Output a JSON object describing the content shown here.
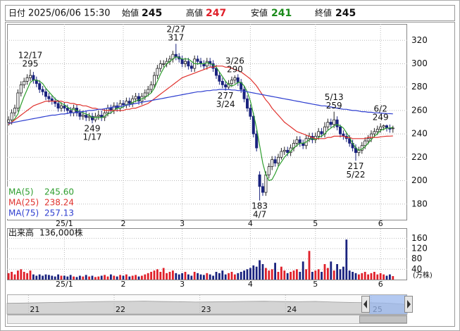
{
  "chart_data": {
    "type": "candlestick",
    "header": {
      "date_label": "日付",
      "date": "2025/06/06 15:30",
      "open_label": "始値",
      "high_label": "高値",
      "low_label": "安値",
      "close_label": "終値"
    },
    "categories": [
      null,
      null,
      null,
      null,
      null,
      null,
      null,
      null,
      null,
      null,
      null,
      null,
      null,
      null,
      null,
      null,
      null,
      null,
      "25/1",
      null,
      null,
      null,
      null,
      null,
      null,
      null,
      null,
      null,
      null,
      null,
      null,
      null,
      null,
      null,
      null,
      null,
      null,
      "2",
      null,
      null,
      null,
      null,
      null,
      null,
      null,
      null,
      null,
      null,
      null,
      null,
      null,
      null,
      null,
      null,
      null,
      null,
      "3",
      null,
      null,
      null,
      null,
      null,
      null,
      null,
      null,
      null,
      null,
      null,
      null,
      null,
      null,
      null,
      null,
      null,
      null,
      null,
      null,
      null,
      "4",
      null,
      null,
      null,
      null,
      null,
      null,
      null,
      null,
      null,
      null,
      null,
      null,
      null,
      null,
      null,
      null,
      null,
      null,
      null,
      null,
      "5",
      null,
      null,
      null,
      null,
      null,
      null,
      null,
      null,
      null,
      null,
      null,
      null,
      null,
      null,
      null,
      null,
      null,
      null,
      null,
      null,
      "6",
      null,
      null,
      null,
      null
    ],
    "open": [
      250,
      252,
      258,
      262,
      275,
      282,
      285,
      288,
      290,
      286,
      283,
      278,
      276,
      272,
      270,
      268,
      266,
      262,
      264,
      262,
      260,
      258,
      262,
      258,
      255,
      256,
      254,
      255,
      252,
      255,
      256,
      254,
      258,
      262,
      260,
      264,
      262,
      266,
      265,
      268,
      266,
      270,
      272,
      268,
      272,
      275,
      278,
      282,
      290,
      296,
      300,
      300,
      302,
      304,
      308,
      306,
      304,
      300,
      302,
      298,
      296,
      304,
      302,
      300,
      298,
      302,
      300,
      296,
      290,
      285,
      282,
      280,
      283,
      286,
      288,
      284,
      278,
      270,
      262,
      255,
      240,
      205,
      195,
      190,
      205,
      212,
      218,
      215,
      220,
      225,
      226,
      224,
      228,
      232,
      235,
      232,
      230,
      236,
      238,
      235,
      238,
      242,
      240,
      246,
      250,
      248,
      252,
      246,
      240,
      238,
      236,
      232,
      228,
      224,
      226,
      230,
      234,
      236,
      240,
      242,
      244,
      246,
      247,
      245,
      245
    ],
    "high": [
      255,
      261,
      265,
      278,
      285,
      288,
      291,
      295,
      293,
      289,
      286,
      281,
      279,
      275,
      273,
      271,
      269,
      267,
      267,
      265,
      263,
      265,
      265,
      261,
      260,
      260,
      258,
      258,
      258,
      260,
      260,
      261,
      265,
      265,
      267,
      267,
      269,
      269,
      271,
      271,
      273,
      275,
      275,
      275,
      278,
      281,
      285,
      293,
      299,
      303,
      303,
      305,
      307,
      311,
      317,
      309,
      307,
      305,
      305,
      301,
      307,
      307,
      305,
      303,
      305,
      305,
      303,
      299,
      293,
      288,
      285,
      286,
      289,
      290,
      291,
      287,
      281,
      273,
      265,
      258,
      243,
      208,
      198,
      208,
      215,
      221,
      221,
      223,
      228,
      229,
      229,
      231,
      235,
      238,
      238,
      235,
      239,
      241,
      241,
      241,
      245,
      245,
      250,
      253,
      253,
      259,
      255,
      248,
      243,
      241,
      239,
      235,
      231,
      229,
      233,
      237,
      239,
      243,
      245,
      247,
      249,
      248,
      248,
      248,
      247
    ],
    "low": [
      247,
      248,
      255,
      259,
      272,
      279,
      282,
      285,
      283,
      280,
      275,
      273,
      269,
      267,
      265,
      263,
      259,
      259,
      259,
      257,
      255,
      255,
      255,
      252,
      252,
      251,
      251,
      249,
      250,
      252,
      251,
      251,
      255,
      257,
      257,
      259,
      259,
      262,
      262,
      263,
      263,
      267,
      265,
      265,
      269,
      272,
      275,
      279,
      287,
      293,
      297,
      297,
      299,
      301,
      303,
      301,
      297,
      297,
      295,
      293,
      293,
      299,
      297,
      295,
      295,
      297,
      293,
      287,
      282,
      279,
      277,
      278,
      280,
      283,
      281,
      275,
      267,
      259,
      252,
      237,
      225,
      183,
      187,
      187,
      202,
      209,
      212,
      212,
      218,
      222,
      221,
      221,
      225,
      229,
      229,
      227,
      227,
      233,
      232,
      232,
      235,
      237,
      237,
      243,
      245,
      245,
      243,
      237,
      235,
      233,
      229,
      225,
      217,
      221,
      223,
      227,
      231,
      233,
      237,
      239,
      241,
      243,
      242,
      241,
      241
    ],
    "close": [
      252,
      258,
      262,
      275,
      282,
      285,
      288,
      290,
      286,
      283,
      278,
      276,
      272,
      270,
      268,
      266,
      262,
      264,
      262,
      260,
      258,
      262,
      258,
      255,
      256,
      254,
      255,
      252,
      255,
      256,
      254,
      258,
      262,
      260,
      264,
      262,
      266,
      265,
      268,
      266,
      270,
      272,
      268,
      272,
      275,
      278,
      282,
      290,
      296,
      300,
      300,
      302,
      304,
      308,
      306,
      304,
      300,
      302,
      298,
      296,
      304,
      302,
      300,
      298,
      302,
      300,
      296,
      290,
      285,
      282,
      280,
      283,
      286,
      288,
      284,
      278,
      270,
      262,
      255,
      240,
      228,
      195,
      190,
      205,
      212,
      218,
      215,
      220,
      225,
      226,
      224,
      228,
      232,
      235,
      232,
      230,
      236,
      238,
      235,
      238,
      242,
      240,
      246,
      250,
      248,
      252,
      246,
      240,
      238,
      236,
      232,
      228,
      224,
      226,
      230,
      234,
      236,
      240,
      242,
      244,
      246,
      247,
      245,
      244,
      245
    ],
    "up_color": "#ffffff",
    "down_color": "#1a237e",
    "ma": [
      {
        "name": "MA(5)",
        "color": "#2e9e2e",
        "latest_label": "245.60",
        "values": [
          248,
          250,
          253,
          257,
          265,
          272,
          278,
          284,
          286,
          286,
          285,
          283,
          279,
          276,
          273,
          270,
          268,
          266,
          265,
          263,
          261,
          261,
          260,
          259,
          258,
          257,
          256,
          254,
          254,
          254,
          254,
          255,
          257,
          258,
          260,
          262,
          262,
          263,
          265,
          265,
          267,
          268,
          269,
          270,
          271,
          273,
          275,
          279,
          285,
          291,
          296,
          300,
          302,
          304,
          306,
          305,
          304,
          304,
          304,
          302,
          300,
          300,
          300,
          300,
          301,
          300,
          299,
          297,
          293,
          289,
          285,
          282,
          281,
          282,
          284,
          284,
          281,
          276,
          268,
          257,
          245,
          230,
          215,
          205,
          200,
          201,
          206,
          212,
          216,
          220,
          223,
          225,
          228,
          230,
          232,
          232,
          233,
          235,
          236,
          235,
          237,
          238,
          240,
          243,
          245,
          247,
          248,
          247,
          245,
          241,
          237,
          232,
          228,
          226,
          227,
          229,
          232,
          235,
          238,
          240,
          243,
          244,
          245,
          245,
          245.6
        ]
      },
      {
        "name": "MA(25)",
        "color": "#e0322e",
        "latest_label": "238.24",
        "values": [
          248,
          250,
          252,
          254,
          256,
          258,
          260,
          262,
          264,
          265,
          266,
          267,
          268,
          268,
          268,
          268,
          268,
          268,
          267,
          267,
          266,
          266,
          265,
          265,
          264,
          264,
          263,
          262,
          262,
          261,
          261,
          260,
          260,
          260,
          260,
          260,
          260,
          260,
          261,
          261,
          262,
          262,
          263,
          264,
          265,
          266,
          268,
          270,
          272,
          274,
          276,
          278,
          280,
          282,
          284,
          286,
          288,
          289,
          290,
          291,
          292,
          293,
          294,
          295,
          296,
          297,
          297,
          298,
          298,
          298,
          297,
          297,
          296,
          295,
          294,
          293,
          291,
          289,
          287,
          284,
          281,
          277,
          273,
          269,
          266,
          262,
          259,
          256,
          253,
          250,
          248,
          246,
          244,
          242,
          241,
          240,
          239,
          238,
          237,
          236,
          236,
          236,
          236,
          237,
          237,
          238,
          238,
          238,
          238,
          237,
          237,
          236,
          236,
          236,
          236,
          236,
          237,
          237,
          237,
          237,
          237.5,
          237.8,
          238,
          238.1,
          238.24
        ]
      },
      {
        "name": "MA(75)",
        "color": "#2f3fd0",
        "latest_label": "257.13",
        "values": [
          249,
          249.5,
          250,
          250.5,
          251,
          251.5,
          252,
          252.5,
          253,
          253.5,
          254,
          254.5,
          255,
          255.5,
          256,
          256,
          256.5,
          257,
          257,
          257.5,
          258,
          258,
          258.5,
          259,
          259,
          259.5,
          260,
          260,
          260.5,
          261,
          261,
          261.5,
          262,
          262.5,
          263,
          263,
          263.5,
          264,
          264.5,
          265,
          265.5,
          266,
          266.5,
          267,
          267.5,
          268,
          268.5,
          269,
          269.5,
          270,
          270.5,
          271,
          271.5,
          272,
          272.5,
          273,
          273.5,
          274,
          274.5,
          275,
          275.5,
          276,
          276,
          276.5,
          277,
          277,
          277.5,
          277.5,
          278,
          278,
          278,
          278,
          277.5,
          277.5,
          277,
          277,
          276.5,
          276,
          275.5,
          275,
          274.5,
          274,
          273.5,
          273,
          272.5,
          272,
          271.5,
          271,
          270.5,
          270,
          269.5,
          269,
          268.5,
          268,
          267.5,
          267,
          266.5,
          266,
          265.5,
          265,
          264.5,
          264,
          264,
          263.5,
          263,
          262.5,
          262,
          261.5,
          261,
          261,
          260.5,
          260,
          260,
          259.5,
          259,
          259,
          258.5,
          258.5,
          258,
          258,
          257.8,
          257.6,
          257.4,
          257.3,
          257.13
        ]
      }
    ],
    "annotations": [
      {
        "date": "12/17",
        "value": 295,
        "kind": "high"
      },
      {
        "date": "1/17",
        "value": 249,
        "kind": "low"
      },
      {
        "date": "2/27",
        "value": 317,
        "kind": "high"
      },
      {
        "date": "3/24",
        "value": 277,
        "kind": "low"
      },
      {
        "date": "3/26",
        "value": 290,
        "kind": "high"
      },
      {
        "date": "4/7",
        "value": 183,
        "kind": "low"
      },
      {
        "date": "5/13",
        "value": 259,
        "kind": "high"
      },
      {
        "date": "5/22",
        "value": 217,
        "kind": "low"
      },
      {
        "date": "6/2",
        "value": 249,
        "kind": "high"
      }
    ],
    "ylim": [
      166,
      334
    ],
    "yticks": [
      180,
      200,
      220,
      240,
      260,
      280,
      300,
      320
    ],
    "grid": true,
    "volume": {
      "name": "出来高",
      "latest_label": "136,000株",
      "unit_label": "(万株)",
      "up_color": "#e0202a",
      "down_color": "#1a237e",
      "ylim": [
        0,
        180
      ],
      "yticks": [
        40,
        80,
        120,
        160
      ],
      "values": [
        25,
        30,
        20,
        35,
        40,
        30,
        25,
        35,
        20,
        15,
        20,
        15,
        20,
        18,
        15,
        12,
        20,
        15,
        15,
        12,
        18,
        12,
        10,
        15,
        12,
        18,
        12,
        15,
        10,
        12,
        15,
        18,
        12,
        20,
        15,
        12,
        18,
        15,
        20,
        12,
        15,
        18,
        12,
        15,
        20,
        25,
        30,
        35,
        40,
        30,
        45,
        25,
        30,
        35,
        25,
        20,
        25,
        30,
        20,
        15,
        30,
        25,
        20,
        18,
        25,
        20,
        15,
        30,
        25,
        35,
        20,
        25,
        30,
        20,
        25,
        30,
        35,
        40,
        45,
        55,
        50,
        75,
        60,
        45,
        35,
        40,
        65,
        30,
        50,
        35,
        25,
        30,
        35,
        40,
        30,
        70,
        40,
        111,
        30,
        35,
        40,
        30,
        60,
        45,
        70,
        35,
        60,
        40,
        50,
        155,
        35,
        30,
        25,
        20,
        25,
        30,
        20,
        25,
        30,
        20,
        25,
        20,
        15,
        20,
        13.6
      ]
    },
    "navigator": {
      "x": [
        2020.75,
        2020.95,
        2021.15,
        2021.35,
        2021.55,
        2021.75,
        2021.95,
        2022.15,
        2022.35,
        2022.55,
        2022.75,
        2022.95,
        2023.15,
        2023.35,
        2023.55,
        2023.75,
        2023.95,
        2024.15,
        2024.35,
        2024.55,
        2024.75,
        2024.95,
        2025.15,
        2025.35,
        2025.42
      ],
      "values": [
        270,
        275,
        280,
        285,
        290,
        295,
        300,
        300,
        305,
        298,
        295,
        290,
        292,
        295,
        300,
        302,
        298,
        295,
        300,
        290,
        285,
        280,
        275,
        260,
        245
      ],
      "xlim": [
        2020.75,
        2025.42
      ],
      "ylim": [
        100,
        400
      ],
      "xticks": [
        {
          "value": 2021,
          "label": "21"
        },
        {
          "value": 2022,
          "label": "22"
        },
        {
          "value": 2023,
          "label": "23"
        },
        {
          "value": 2024,
          "label": "24"
        },
        {
          "value": 2025,
          "label": "25"
        }
      ]
    }
  }
}
